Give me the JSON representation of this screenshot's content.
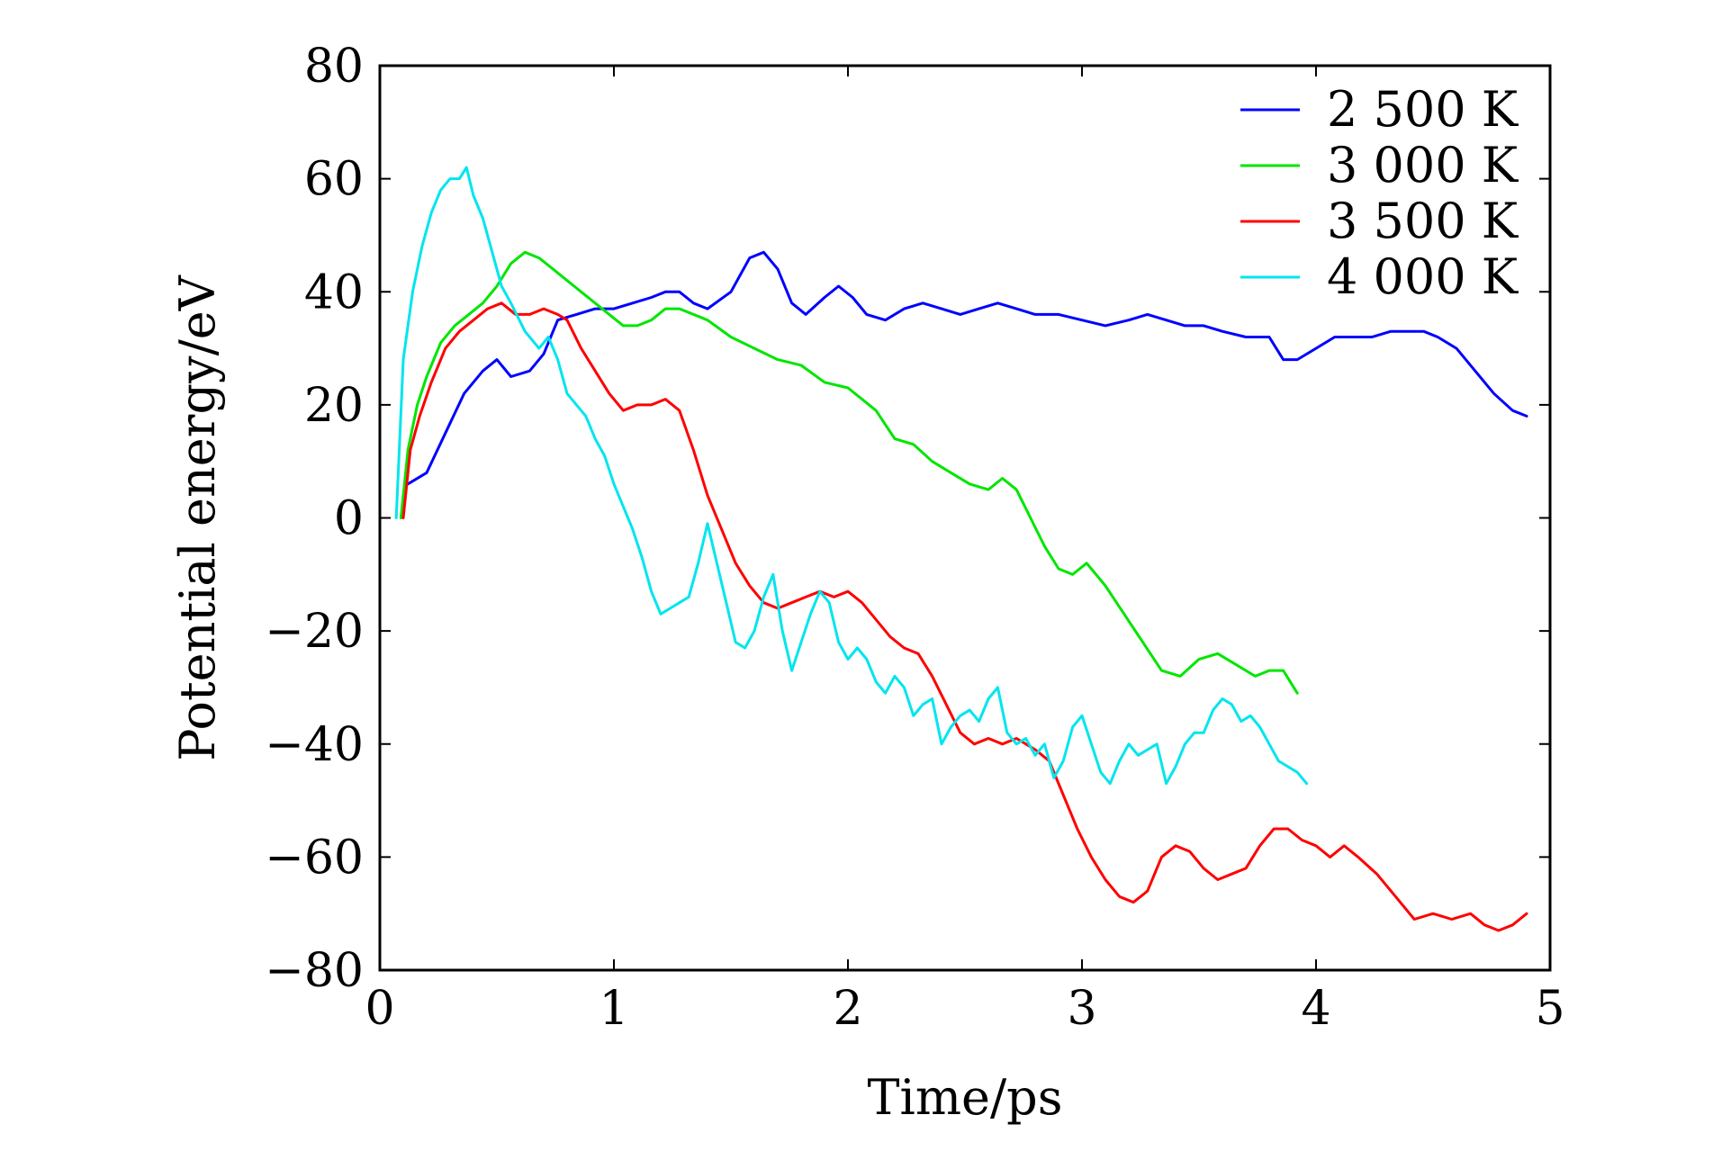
{
  "chart_data": {
    "type": "line",
    "title": "",
    "xlabel": "Time/ps",
    "ylabel": "Potential energy/eV",
    "xlim": [
      0,
      5
    ],
    "ylim": [
      -80,
      80
    ],
    "xticks": [
      0,
      1,
      2,
      3,
      4,
      5
    ],
    "yticks": [
      80,
      60,
      40,
      20,
      0,
      -20,
      -40,
      -60,
      -80
    ],
    "xtick_labels": [
      "0",
      "1",
      "2",
      "3",
      "4",
      "5"
    ],
    "ytick_labels": [
      "80",
      "60",
      "40",
      "20",
      "0",
      "−20",
      "−40",
      "−60",
      "−80"
    ],
    "grid": false,
    "legend_position": "top-right",
    "series": [
      {
        "name": "2 500 K",
        "color": "#0000ff",
        "x": [
          0.12,
          0.2,
          0.28,
          0.36,
          0.44,
          0.5,
          0.56,
          0.64,
          0.7,
          0.76,
          0.84,
          0.92,
          1.0,
          1.08,
          1.16,
          1.22,
          1.28,
          1.34,
          1.4,
          1.5,
          1.58,
          1.64,
          1.7,
          1.76,
          1.82,
          1.9,
          1.96,
          2.02,
          2.08,
          2.16,
          2.24,
          2.32,
          2.4,
          2.48,
          2.56,
          2.64,
          2.72,
          2.8,
          2.9,
          3.0,
          3.1,
          3.2,
          3.28,
          3.36,
          3.44,
          3.52,
          3.6,
          3.7,
          3.8,
          3.86,
          3.92,
          4.0,
          4.08,
          4.16,
          4.24,
          4.32,
          4.4,
          4.46,
          4.52,
          4.6,
          4.68,
          4.76,
          4.84,
          4.9
        ],
        "y": [
          6,
          8,
          15,
          22,
          26,
          28,
          25,
          26,
          29,
          35,
          36,
          37,
          37,
          38,
          39,
          40,
          40,
          38,
          37,
          40,
          46,
          47,
          44,
          38,
          36,
          39,
          41,
          39,
          36,
          35,
          37,
          38,
          37,
          36,
          37,
          38,
          37,
          36,
          36,
          35,
          34,
          35,
          36,
          35,
          34,
          34,
          33,
          32,
          32,
          28,
          28,
          30,
          32,
          32,
          32,
          33,
          33,
          33,
          32,
          30,
          26,
          22,
          19,
          18
        ]
      },
      {
        "name": "3 000 K",
        "color": "#00e600",
        "x": [
          0.09,
          0.12,
          0.16,
          0.2,
          0.26,
          0.32,
          0.38,
          0.44,
          0.5,
          0.56,
          0.62,
          0.68,
          0.74,
          0.8,
          0.86,
          0.92,
          0.98,
          1.04,
          1.1,
          1.16,
          1.22,
          1.28,
          1.34,
          1.4,
          1.5,
          1.6,
          1.7,
          1.8,
          1.9,
          2.0,
          2.06,
          2.12,
          2.2,
          2.28,
          2.36,
          2.44,
          2.52,
          2.6,
          2.66,
          2.72,
          2.78,
          2.84,
          2.9,
          2.96,
          3.02,
          3.1,
          3.18,
          3.26,
          3.34,
          3.42,
          3.5,
          3.58,
          3.66,
          3.74,
          3.8,
          3.86,
          3.92
        ],
        "y": [
          0,
          12,
          20,
          25,
          31,
          34,
          36,
          38,
          41,
          45,
          47,
          46,
          44,
          42,
          40,
          38,
          36,
          34,
          34,
          35,
          37,
          37,
          36,
          35,
          32,
          30,
          28,
          27,
          24,
          23,
          21,
          19,
          14,
          13,
          10,
          8,
          6,
          5,
          7,
          5,
          0,
          -5,
          -9,
          -10,
          -8,
          -12,
          -17,
          -22,
          -27,
          -28,
          -25,
          -24,
          -26,
          -28,
          -27,
          -27,
          -31
        ]
      },
      {
        "name": "3 500 K",
        "color": "#ff0000",
        "x": [
          0.1,
          0.13,
          0.17,
          0.22,
          0.28,
          0.34,
          0.4,
          0.46,
          0.52,
          0.58,
          0.64,
          0.7,
          0.76,
          0.8,
          0.86,
          0.92,
          0.98,
          1.04,
          1.1,
          1.16,
          1.22,
          1.28,
          1.34,
          1.4,
          1.46,
          1.52,
          1.58,
          1.64,
          1.7,
          1.76,
          1.82,
          1.88,
          1.94,
          2.0,
          2.06,
          2.12,
          2.18,
          2.24,
          2.3,
          2.36,
          2.42,
          2.48,
          2.54,
          2.6,
          2.66,
          2.72,
          2.8,
          2.86,
          2.92,
          2.98,
          3.04,
          3.1,
          3.16,
          3.22,
          3.28,
          3.34,
          3.4,
          3.46,
          3.52,
          3.58,
          3.64,
          3.7,
          3.76,
          3.82,
          3.88,
          3.94,
          4.0,
          4.06,
          4.12,
          4.18,
          4.26,
          4.34,
          4.42,
          4.5,
          4.58,
          4.66,
          4.72,
          4.78,
          4.84,
          4.9
        ],
        "y": [
          0,
          12,
          18,
          24,
          30,
          33,
          35,
          37,
          38,
          36,
          36,
          37,
          36,
          35,
          30,
          26,
          22,
          19,
          20,
          20,
          21,
          19,
          12,
          4,
          -2,
          -8,
          -12,
          -15,
          -16,
          -15,
          -14,
          -13,
          -14,
          -13,
          -15,
          -18,
          -21,
          -23,
          -24,
          -28,
          -33,
          -38,
          -40,
          -39,
          -40,
          -39,
          -41,
          -43,
          -49,
          -55,
          -60,
          -64,
          -67,
          -68,
          -66,
          -60,
          -58,
          -59,
          -62,
          -64,
          -63,
          -62,
          -58,
          -55,
          -55,
          -57,
          -58,
          -60,
          -58,
          -60,
          -63,
          -67,
          -71,
          -70,
          -71,
          -70,
          -72,
          -73,
          -72,
          -70
        ]
      },
      {
        "name": "4 000 K",
        "color": "#00e5ee",
        "x": [
          0.07,
          0.1,
          0.14,
          0.18,
          0.22,
          0.26,
          0.3,
          0.34,
          0.37,
          0.4,
          0.44,
          0.48,
          0.52,
          0.56,
          0.62,
          0.68,
          0.72,
          0.76,
          0.8,
          0.84,
          0.88,
          0.92,
          0.96,
          1.0,
          1.04,
          1.08,
          1.12,
          1.16,
          1.2,
          1.24,
          1.28,
          1.32,
          1.36,
          1.4,
          1.44,
          1.48,
          1.52,
          1.56,
          1.6,
          1.64,
          1.68,
          1.72,
          1.76,
          1.8,
          1.84,
          1.88,
          1.92,
          1.96,
          2.0,
          2.04,
          2.08,
          2.12,
          2.16,
          2.2,
          2.24,
          2.28,
          2.32,
          2.36,
          2.4,
          2.44,
          2.48,
          2.52,
          2.56,
          2.6,
          2.64,
          2.68,
          2.72,
          2.76,
          2.8,
          2.84,
          2.88,
          2.92,
          2.96,
          3.0,
          3.04,
          3.08,
          3.12,
          3.16,
          3.2,
          3.24,
          3.28,
          3.32,
          3.36,
          3.4,
          3.44,
          3.48,
          3.52,
          3.56,
          3.6,
          3.64,
          3.68,
          3.72,
          3.76,
          3.8,
          3.84,
          3.88,
          3.92,
          3.96
        ],
        "y": [
          0,
          28,
          40,
          48,
          54,
          58,
          60,
          60,
          62,
          57,
          53,
          47,
          41,
          38,
          33,
          30,
          32,
          28,
          22,
          20,
          18,
          14,
          11,
          6,
          2,
          -2,
          -7,
          -13,
          -17,
          -16,
          -15,
          -14,
          -8,
          -1,
          -8,
          -15,
          -22,
          -23,
          -20,
          -14,
          -10,
          -20,
          -27,
          -22,
          -17,
          -13,
          -15,
          -22,
          -25,
          -23,
          -25,
          -29,
          -31,
          -28,
          -30,
          -35,
          -33,
          -32,
          -40,
          -37,
          -35,
          -34,
          -36,
          -32,
          -30,
          -38,
          -40,
          -39,
          -42,
          -40,
          -46,
          -43,
          -37,
          -35,
          -40,
          -45,
          -47,
          -43,
          -40,
          -42,
          -41,
          -40,
          -47,
          -44,
          -40,
          -38,
          -38,
          -34,
          -32,
          -33,
          -36,
          -35,
          -37,
          -40,
          -43,
          -44,
          -45,
          -47
        ]
      }
    ]
  }
}
